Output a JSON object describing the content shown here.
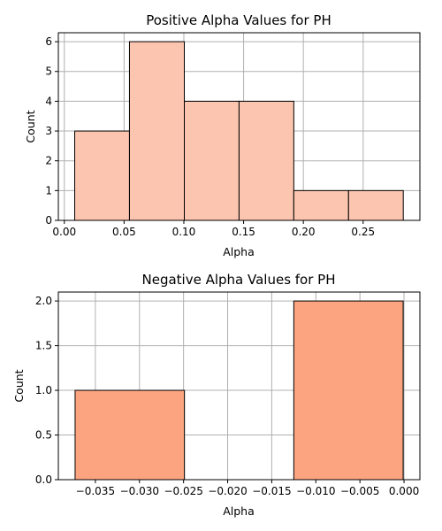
{
  "chart_data": [
    {
      "type": "histogram",
      "title": "Positive Alpha Values for PH",
      "xlabel": "Alpha",
      "ylabel": "Count",
      "bin_edges": [
        0.0087,
        0.0545,
        0.1004,
        0.1462,
        0.192,
        0.2378,
        0.2836
      ],
      "counts": [
        3,
        6,
        4,
        4,
        1,
        1
      ],
      "xlim": [
        -0.005,
        0.2975
      ],
      "ylim": [
        0,
        6.3
      ],
      "xticks": [
        0.0,
        0.05,
        0.1,
        0.15,
        0.2,
        0.25
      ],
      "xtick_labels": [
        "0.00",
        "0.05",
        "0.10",
        "0.15",
        "0.20",
        "0.25"
      ],
      "yticks": [
        0,
        1,
        2,
        3,
        4,
        5,
        6
      ],
      "ytick_labels": [
        "0",
        "1",
        "2",
        "3",
        "4",
        "5",
        "6"
      ],
      "grid": true,
      "bar_color": "#fcc5b0",
      "bar_edge_color": "#000000"
    },
    {
      "type": "histogram",
      "title": "Negative Alpha Values for PH",
      "xlabel": "Alpha",
      "ylabel": "Count",
      "bin_edges": [
        -0.0373,
        -0.0249,
        -0.0125,
        -0.0001
      ],
      "counts": [
        1,
        0,
        2
      ],
      "xlim": [
        -0.0392,
        0.0018
      ],
      "ylim": [
        0,
        2.1
      ],
      "xticks": [
        -0.035,
        -0.03,
        -0.025,
        -0.02,
        -0.015,
        -0.01,
        -0.005,
        0.0
      ],
      "xtick_labels": [
        "−0.035",
        "−0.030",
        "−0.025",
        "−0.020",
        "−0.015",
        "−0.010",
        "−0.005",
        "0.000"
      ],
      "yticks": [
        0,
        0.5,
        1.0,
        1.5,
        2.0
      ],
      "ytick_labels": [
        "0.0",
        "0.5",
        "1.0",
        "1.5",
        "2.0"
      ],
      "grid": true,
      "bar_color": "#fca480",
      "bar_edge_color": "#000000"
    }
  ]
}
